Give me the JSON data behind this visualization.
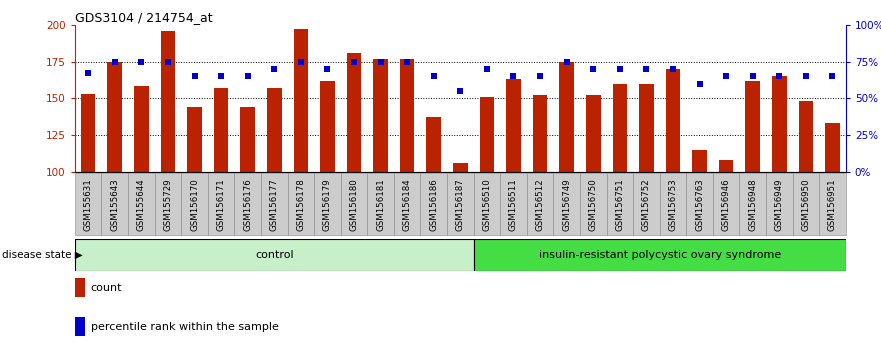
{
  "title": "GDS3104 / 214754_at",
  "samples": [
    "GSM155631",
    "GSM155643",
    "GSM155644",
    "GSM155729",
    "GSM156170",
    "GSM156171",
    "GSM156176",
    "GSM156177",
    "GSM156178",
    "GSM156179",
    "GSM156180",
    "GSM156181",
    "GSM156184",
    "GSM156186",
    "GSM156187",
    "GSM156510",
    "GSM156511",
    "GSM156512",
    "GSM156749",
    "GSM156750",
    "GSM156751",
    "GSM156752",
    "GSM156753",
    "GSM156763",
    "GSM156946",
    "GSM156948",
    "GSM156949",
    "GSM156950",
    "GSM156951"
  ],
  "counts": [
    153,
    175,
    158,
    196,
    144,
    157,
    144,
    157,
    197,
    162,
    181,
    177,
    177,
    137,
    106,
    151,
    163,
    152,
    175,
    152,
    160,
    160,
    170,
    115,
    108,
    162,
    165,
    148,
    133
  ],
  "percentiles": [
    67,
    75,
    75,
    75,
    65,
    65,
    65,
    70,
    75,
    70,
    75,
    75,
    75,
    65,
    55,
    70,
    65,
    65,
    75,
    70,
    70,
    70,
    70,
    60,
    65,
    65,
    65,
    65,
    65
  ],
  "control_count": 15,
  "group_labels": [
    "control",
    "insulin-resistant polycystic ovary syndrome"
  ],
  "bar_color": "#bb2200",
  "dot_color": "#0000cc",
  "ylim_left": [
    100,
    200
  ],
  "ylim_right": [
    0,
    100
  ],
  "yticks_left": [
    100,
    125,
    150,
    175,
    200
  ],
  "yticks_right": [
    0,
    25,
    50,
    75,
    100
  ],
  "ytick_labels_right": [
    "0%",
    "25%",
    "50%",
    "75%",
    "100%"
  ],
  "hlines": [
    125,
    150,
    175
  ],
  "legend_items": [
    "count",
    "percentile rank within the sample"
  ],
  "disease_state_label": "disease state",
  "ctrl_color": "#c8f0c8",
  "pcos_color": "#44dd44"
}
